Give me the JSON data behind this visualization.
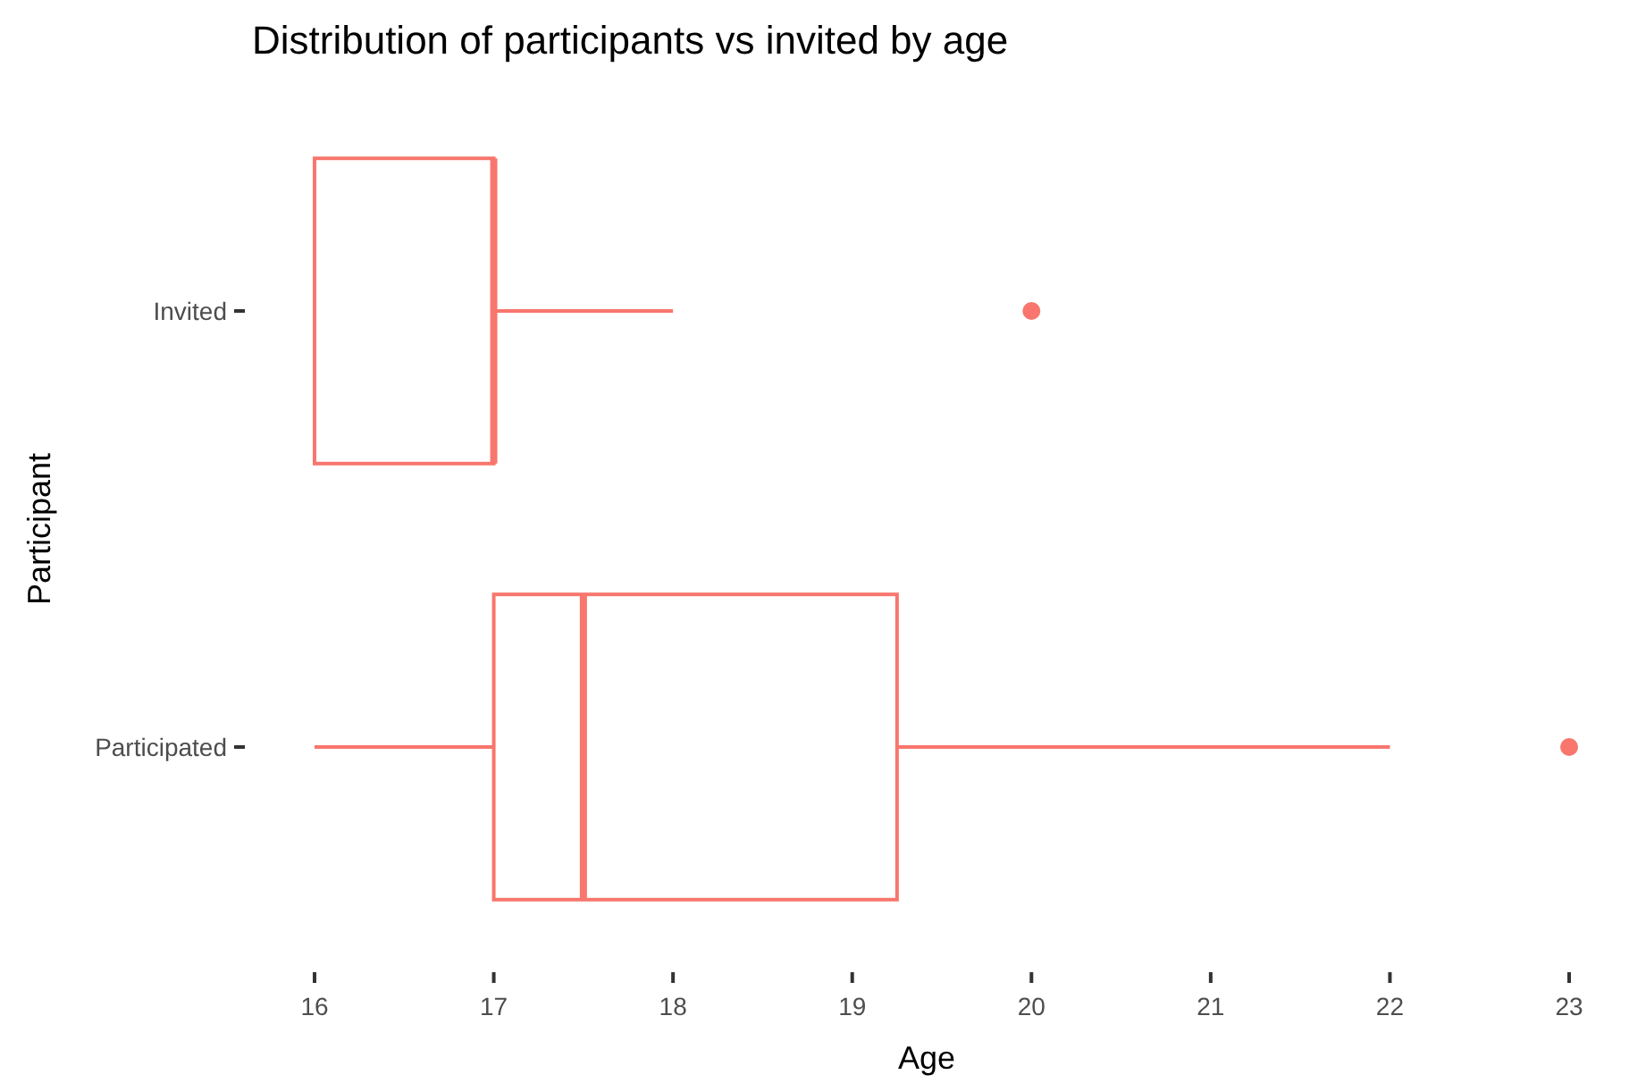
{
  "chart_data": {
    "type": "box",
    "title": "Distribution of participants vs invited by age",
    "xlabel": "Age",
    "ylabel": "Participant",
    "orientation": "horizontal",
    "color": "#f8766d",
    "categories": [
      "Invited",
      "Participated"
    ],
    "boxes": [
      {
        "low": 16,
        "q1": 16,
        "median": 17,
        "q3": 17,
        "high": 18,
        "outliers": [
          20
        ]
      },
      {
        "low": 16,
        "q1": 17,
        "median": 17.5,
        "q3": 19.25,
        "high": 22,
        "outliers": [
          23
        ]
      }
    ],
    "xlim": [
      16,
      23
    ],
    "xticks": [
      16,
      17,
      18,
      19,
      20,
      21,
      22,
      23
    ]
  }
}
